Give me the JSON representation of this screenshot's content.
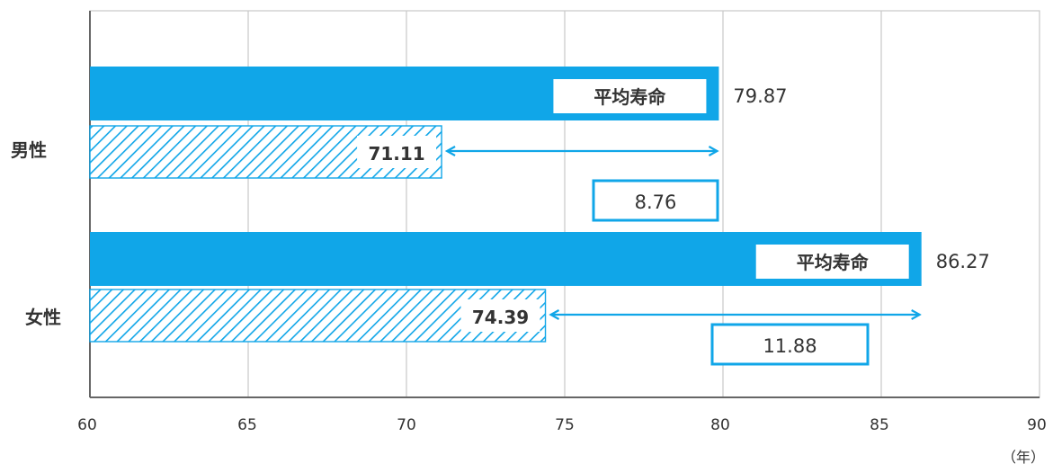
{
  "chart_data": {
    "type": "bar",
    "orientation": "horizontal",
    "categories": [
      "男性",
      "女性"
    ],
    "series": [
      {
        "values": [
          79.87,
          86.27
        ],
        "style": "solid"
      },
      {
        "values": [
          71.11,
          74.39
        ],
        "style": "hatched"
      }
    ],
    "bar_box_label": "平均寿命",
    "differences": [
      8.76,
      11.88
    ],
    "xlim": [
      60,
      90
    ],
    "xticks": [
      "60",
      "65",
      "70",
      "75",
      "80",
      "85",
      "90"
    ],
    "unit": "（年）",
    "grid": true
  },
  "colors": {
    "accent": "#10a6e8",
    "text": "#333333",
    "grid": "#c8c8c8",
    "axis": "#666666"
  }
}
